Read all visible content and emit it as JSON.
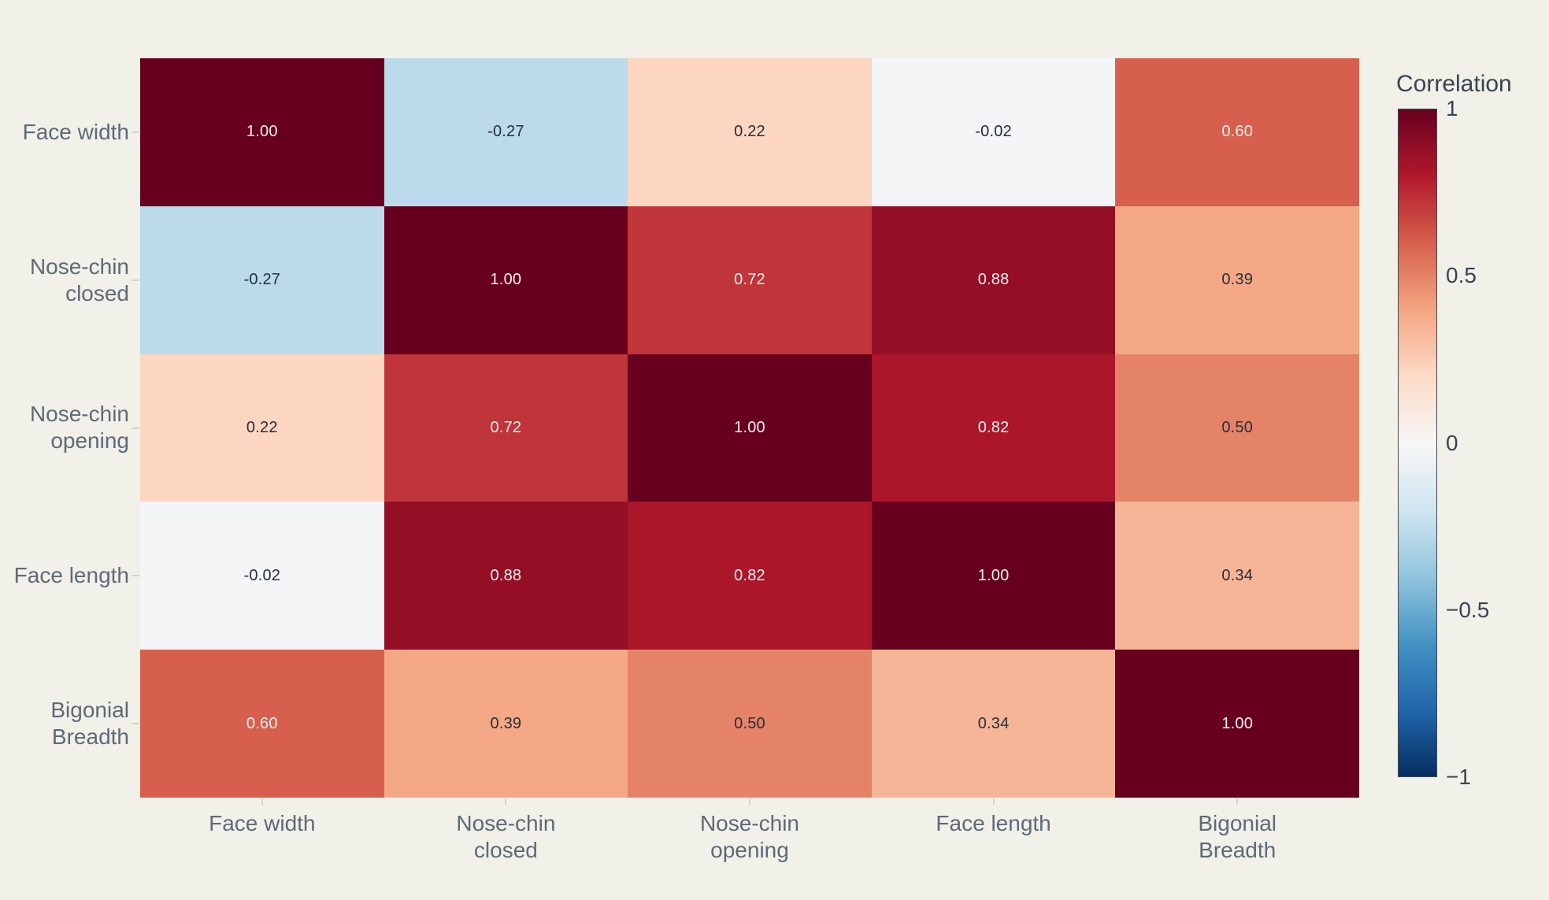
{
  "chart_data": {
    "type": "heatmap",
    "title": "",
    "xlabel": "",
    "ylabel": "",
    "x_categories": [
      "Face width",
      "Nose-chin\nclosed",
      "Nose-chin\nopening",
      "Face length",
      "Bigonial\nBreadth"
    ],
    "y_categories": [
      "Face width",
      "Nose-chin\nclosed",
      "Nose-chin\nopening",
      "Face length",
      "Bigonial\nBreadth"
    ],
    "matrix": [
      [
        1.0,
        -0.27,
        0.22,
        -0.02,
        0.6
      ],
      [
        -0.27,
        1.0,
        0.72,
        0.88,
        0.39
      ],
      [
        0.22,
        0.72,
        1.0,
        0.82,
        0.5
      ],
      [
        -0.02,
        0.88,
        0.82,
        1.0,
        0.34
      ],
      [
        0.6,
        0.39,
        0.5,
        0.34,
        1.0
      ]
    ],
    "value_decimals": 2,
    "zmin": -1,
    "zmax": 1,
    "grid": false,
    "text_light_threshold": 0.55,
    "colorbar": {
      "title": "Correlation",
      "position": "right",
      "tick_labels": [
        "1",
        "0.5",
        "0",
        "−0.5",
        "−1"
      ],
      "tick_values": [
        1,
        0.5,
        0,
        -0.5,
        -1
      ],
      "colorscale_top_to_bottom": [
        "#67001f",
        "#b2182b",
        "#d6604d",
        "#f4a582",
        "#fddbc7",
        "#f7f7f7",
        "#d1e5f0",
        "#92c5de",
        "#4393c3",
        "#2166ac",
        "#053061"
      ]
    }
  },
  "colors": {
    "background": "#f1f0e9",
    "axis_label": "#5e6a77",
    "axis_tick_mark": "#d6d0c9",
    "cell_text_dark": "#252e3a",
    "cell_text_light": "#f5f0ef",
    "colorbar_text": "#3a4350",
    "colorbar_border": "#40464f",
    "max_color": "#67001f",
    "min_color": "#053061"
  }
}
